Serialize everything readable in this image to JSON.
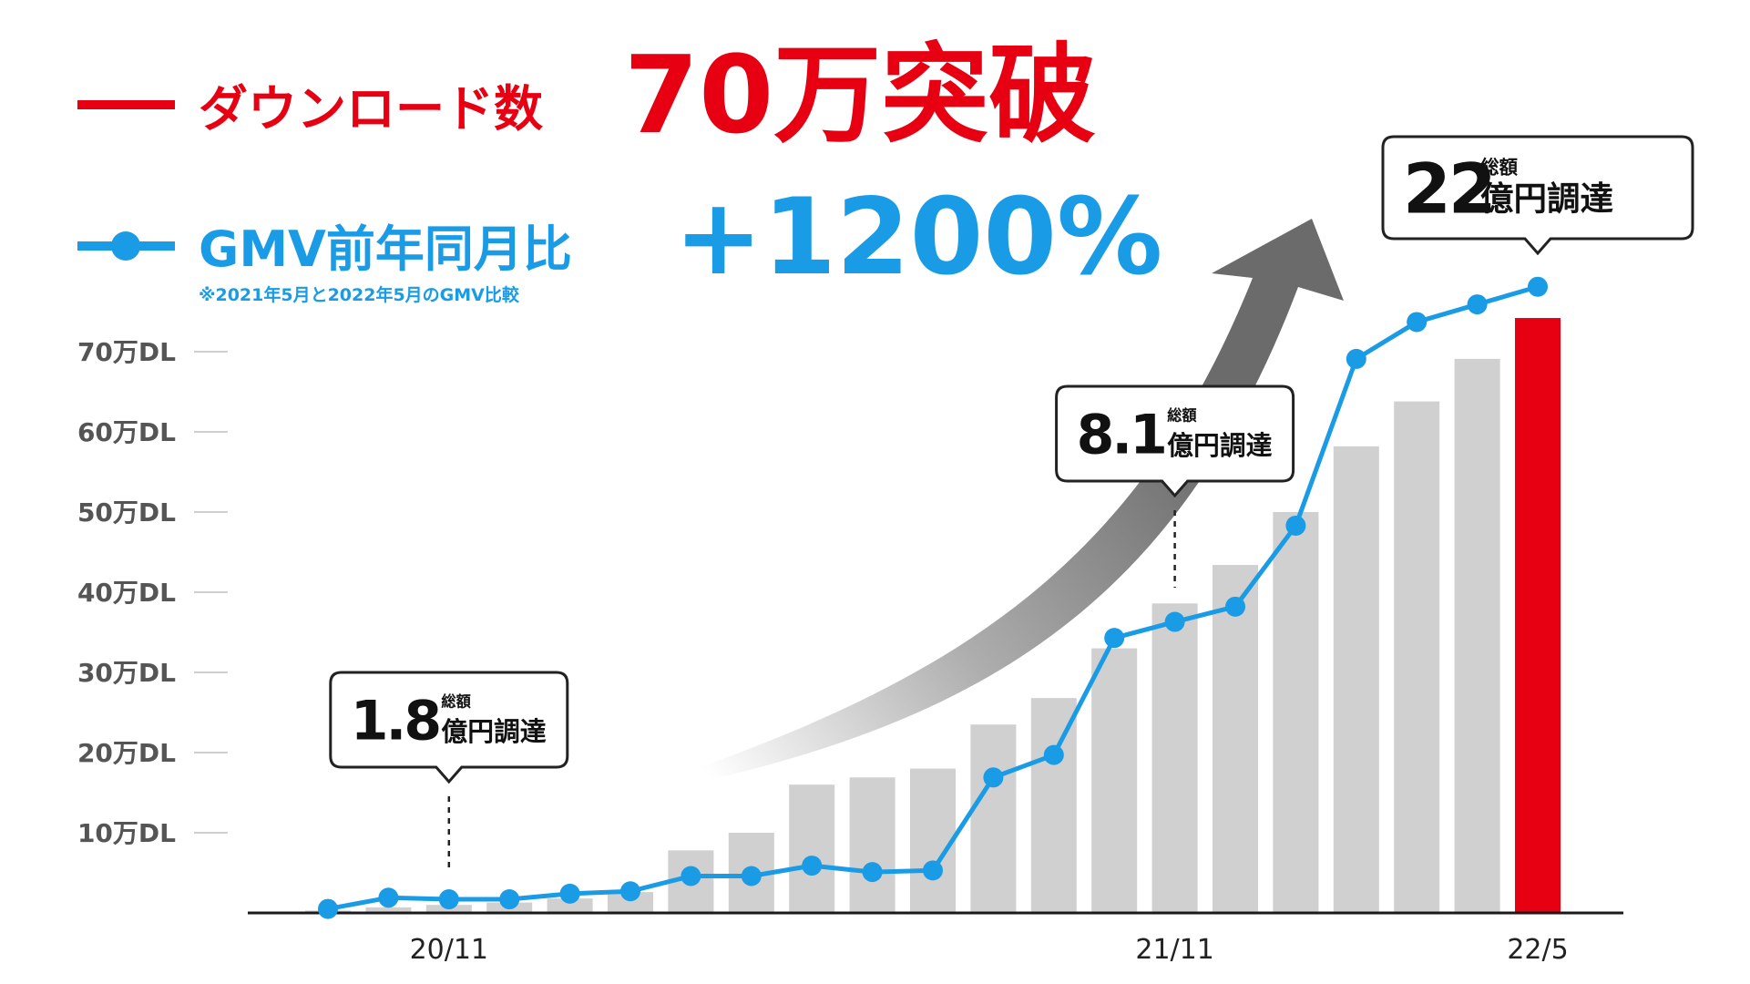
{
  "legend": {
    "downloads": {
      "label": "ダウンロード数",
      "headline": "70万突破",
      "color": "#e60012"
    },
    "gmv": {
      "label": "GMV前年同月比",
      "headline": "+1200%",
      "note": "※2021年5月と2022年5月のGMV比較",
      "color": "#1a9be6"
    }
  },
  "chart_data": {
    "type": "bar",
    "y_unit_label": "万DL",
    "ylim": [
      0,
      70
    ],
    "y_ticks": [
      {
        "value": 10,
        "label": "10万DL"
      },
      {
        "value": 20,
        "label": "20万DL"
      },
      {
        "value": 30,
        "label": "30万DL"
      },
      {
        "value": 40,
        "label": "40万DL"
      },
      {
        "value": 50,
        "label": "50万DL"
      },
      {
        "value": 60,
        "label": "60万DL"
      },
      {
        "value": 70,
        "label": "70万DL"
      }
    ],
    "x_labels": [
      {
        "index": 2,
        "label": "20/11"
      },
      {
        "index": 14,
        "label": "21/11"
      },
      {
        "index": 20,
        "label": "22/5"
      }
    ],
    "bar_series": {
      "name": "ダウンロード数",
      "values": [
        0.3,
        0.7,
        1.0,
        1.3,
        1.8,
        2.6,
        7.8,
        10.0,
        16.0,
        16.9,
        18.0,
        23.5,
        26.8,
        33.0,
        38.6,
        43.4,
        50.0,
        58.2,
        63.8,
        69.1,
        74.2
      ],
      "bar_color": "#d0d0d0",
      "highlight_color": "#e60012",
      "highlight_index": 20
    },
    "line_series": {
      "name": "GMV前年同月比",
      "color": "#1a9be6",
      "values": [
        0.5,
        1.9,
        1.7,
        1.7,
        2.4,
        2.7,
        4.6,
        4.6,
        5.9,
        5.1,
        5.3,
        16.9,
        19.7,
        34.3,
        36.3,
        38.2,
        48.3,
        69.1,
        73.7,
        75.9,
        78.1
      ]
    },
    "annotations": [
      {
        "index": 2,
        "amount": "1.8",
        "small": "総額",
        "unit": "億円調達"
      },
      {
        "index": 14,
        "amount": "8.1",
        "small": "総額",
        "unit": "億円調達"
      },
      {
        "index": 20,
        "amount": "22",
        "small": "総額",
        "unit": "億円調達"
      }
    ]
  }
}
